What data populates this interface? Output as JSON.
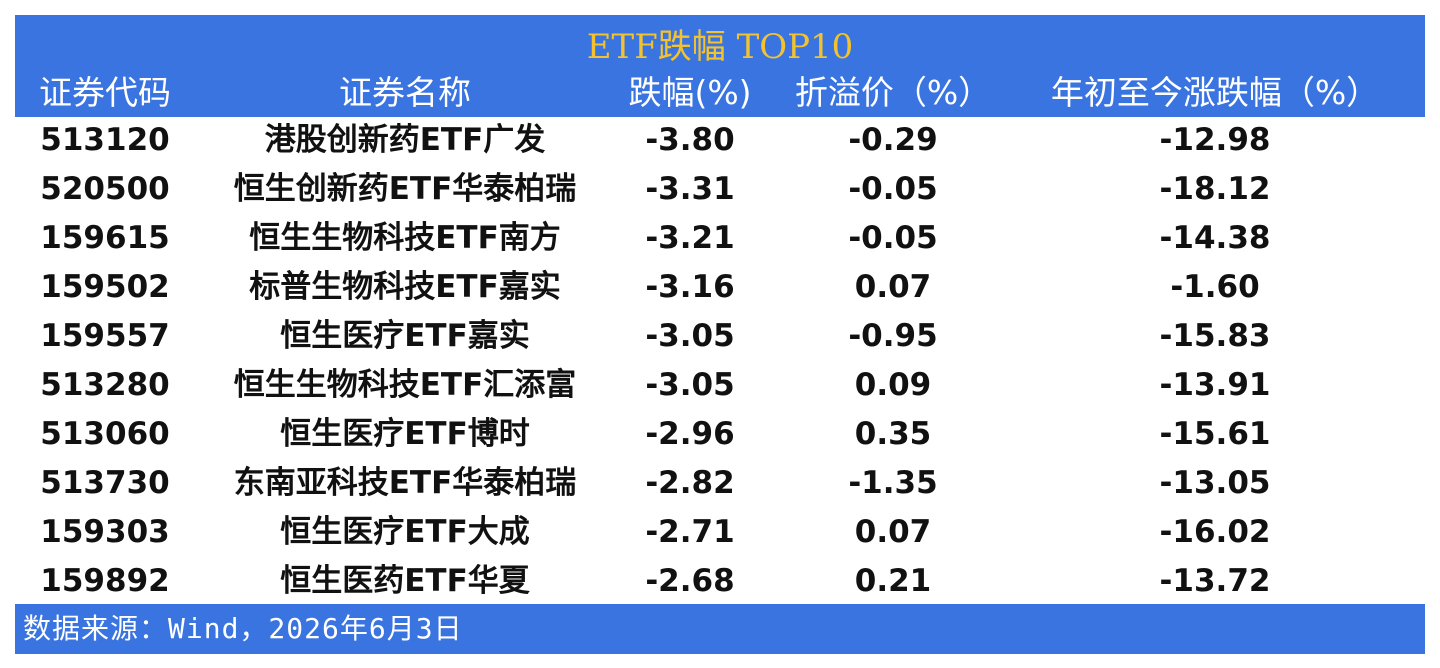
{
  "header": {
    "title": "ETF跌幅 TOP10"
  },
  "table": {
    "columns": [
      "证券代码",
      "证券名称",
      "跌幅(%)",
      "折溢价（%）",
      "年初至今涨跌幅（%）"
    ],
    "rows": [
      [
        "513120",
        "港股创新药ETF广发",
        "-3.80",
        "-0.29",
        "-12.98"
      ],
      [
        "520500",
        "恒生创新药ETF华泰柏瑞",
        "-3.31",
        "-0.05",
        "-18.12"
      ],
      [
        "159615",
        "恒生生物科技ETF南方",
        "-3.21",
        "-0.05",
        "-14.38"
      ],
      [
        "159502",
        "标普生物科技ETF嘉实",
        "-3.16",
        "0.07",
        "-1.60"
      ],
      [
        "159557",
        "恒生医疗ETF嘉实",
        "-3.05",
        "-0.95",
        "-15.83"
      ],
      [
        "513280",
        "恒生生物科技ETF汇添富",
        "-3.05",
        "0.09",
        "-13.91"
      ],
      [
        "513060",
        "恒生医疗ETF博时",
        "-2.96",
        "0.35",
        "-15.61"
      ],
      [
        "513730",
        "东南亚科技ETF华泰柏瑞",
        "-2.82",
        "-1.35",
        "-13.05"
      ],
      [
        "159303",
        "恒生医疗ETF大成",
        "-2.71",
        "0.07",
        "-16.02"
      ],
      [
        "159892",
        "恒生医药ETF华夏",
        "-2.68",
        "0.21",
        "-13.72"
      ]
    ]
  },
  "footer": {
    "source": "数据来源：Wind，2026年6月3日"
  }
}
